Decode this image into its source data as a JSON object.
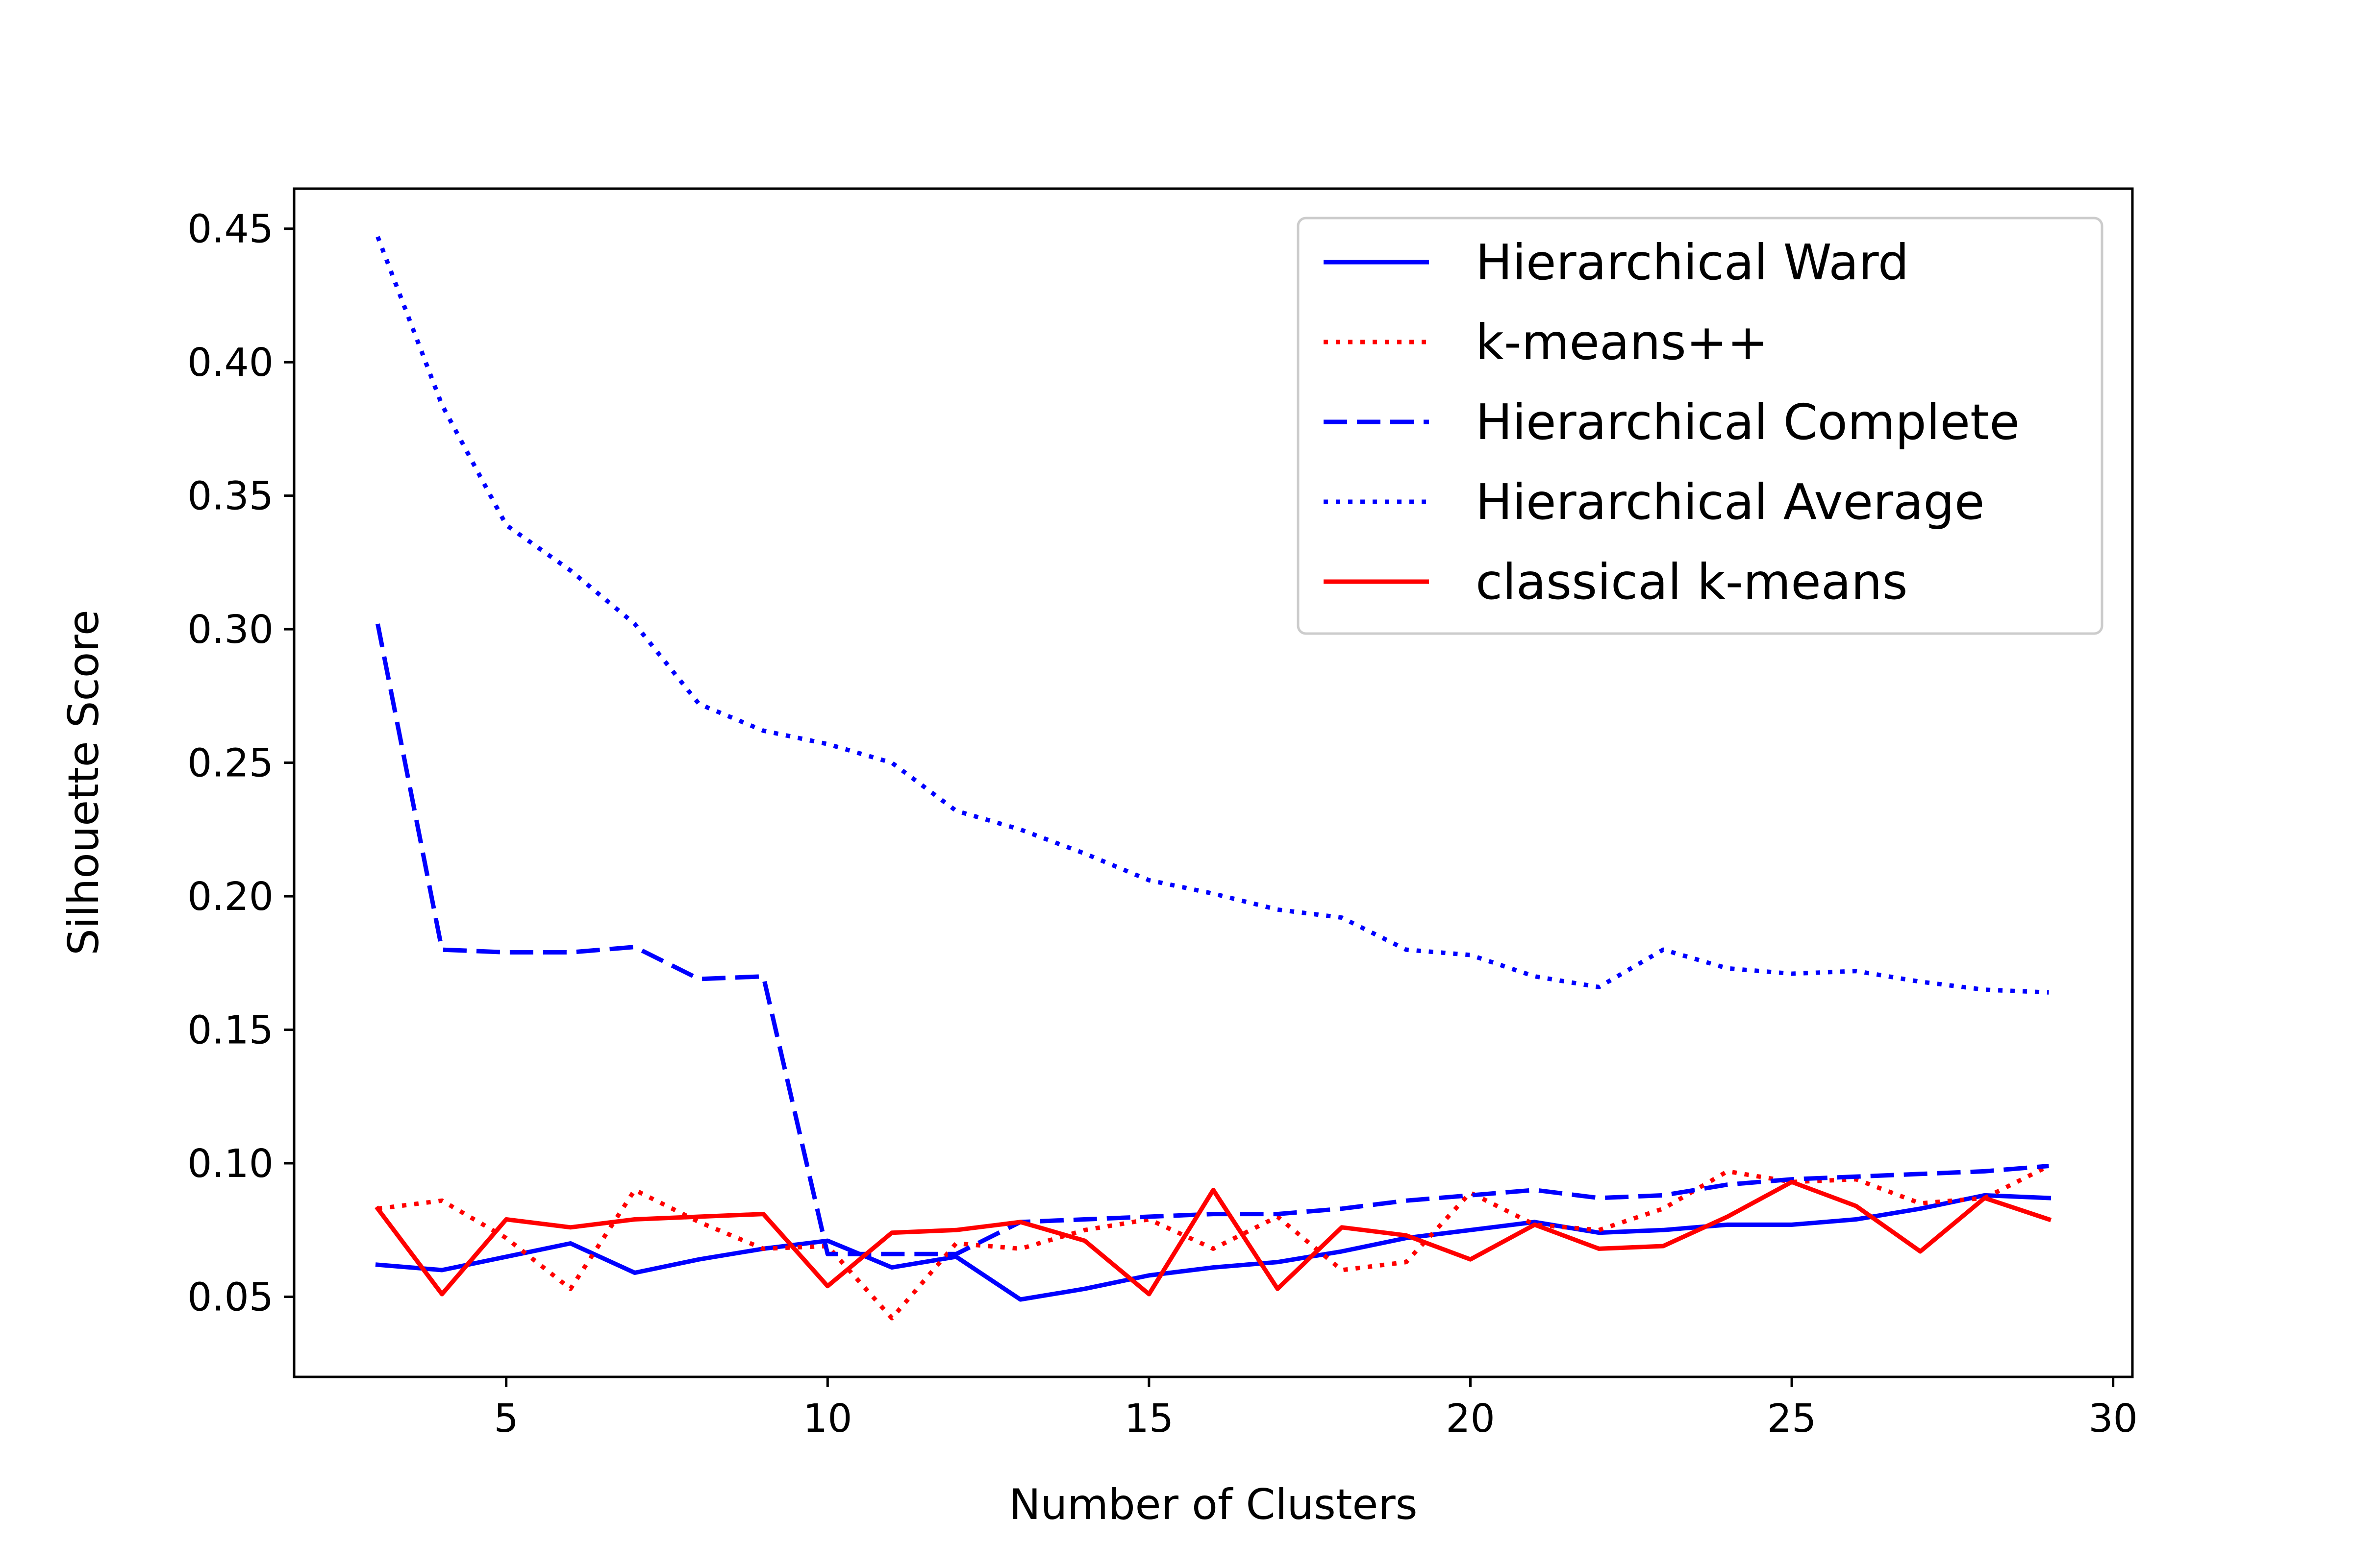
{
  "chart_data": {
    "type": "line",
    "title": "",
    "xlabel": "Number of Clusters",
    "ylabel": "Silhouette Score",
    "xlim": [
      1.7,
      30.3
    ],
    "ylim": [
      0.02,
      0.465
    ],
    "xticks": [
      5,
      10,
      15,
      20,
      25,
      30
    ],
    "yticks": [
      0.05,
      0.1,
      0.15,
      0.2,
      0.25,
      0.3,
      0.35,
      0.4,
      0.45
    ],
    "grid": false,
    "legend_position": "top-right",
    "x": [
      3,
      4,
      5,
      6,
      7,
      8,
      9,
      10,
      11,
      12,
      13,
      14,
      15,
      16,
      17,
      18,
      19,
      20,
      21,
      22,
      23,
      24,
      25,
      26,
      27,
      28,
      29
    ],
    "series": [
      {
        "name": "Hierarchical Ward",
        "color": "#0000ff",
        "style": "solid",
        "values": [
          0.062,
          0.06,
          0.065,
          0.07,
          0.059,
          0.064,
          0.068,
          0.071,
          0.061,
          0.065,
          0.049,
          0.053,
          0.058,
          0.061,
          0.063,
          0.067,
          0.072,
          0.075,
          0.078,
          0.074,
          0.075,
          0.077,
          0.077,
          0.079,
          0.083,
          0.088,
          0.087
        ]
      },
      {
        "name": "k-means++",
        "color": "#ff0000",
        "style": "dotted",
        "values": [
          0.083,
          0.086,
          0.072,
          0.053,
          0.09,
          0.078,
          0.068,
          0.069,
          0.042,
          0.07,
          0.068,
          0.075,
          0.079,
          0.068,
          0.08,
          0.06,
          0.063,
          0.089,
          0.077,
          0.075,
          0.083,
          0.097,
          0.093,
          0.094,
          0.085,
          0.087,
          0.099
        ]
      },
      {
        "name": "Hierarchical Complete",
        "color": "#0000ff",
        "style": "dashed",
        "values": [
          0.302,
          0.18,
          0.179,
          0.179,
          0.181,
          0.169,
          0.17,
          0.066,
          0.066,
          0.066,
          0.078,
          0.079,
          0.08,
          0.081,
          0.081,
          0.083,
          0.086,
          0.088,
          0.09,
          0.087,
          0.088,
          0.092,
          0.094,
          0.095,
          0.096,
          0.097,
          0.099
        ]
      },
      {
        "name": "Hierarchical Average",
        "color": "#0000ff",
        "style": "dotted",
        "values": [
          0.447,
          0.384,
          0.339,
          0.322,
          0.302,
          0.272,
          0.262,
          0.257,
          0.25,
          0.232,
          0.225,
          0.216,
          0.206,
          0.201,
          0.195,
          0.192,
          0.18,
          0.178,
          0.17,
          0.166,
          0.18,
          0.173,
          0.171,
          0.172,
          0.168,
          0.165,
          0.164
        ]
      },
      {
        "name": "classical k-means",
        "color": "#ff0000",
        "style": "solid",
        "values": [
          0.083,
          0.051,
          0.079,
          0.076,
          0.079,
          0.08,
          0.081,
          0.054,
          0.074,
          0.075,
          0.078,
          0.071,
          0.051,
          0.09,
          0.053,
          0.076,
          0.073,
          0.064,
          0.077,
          0.068,
          0.069,
          0.08,
          0.093,
          0.084,
          0.067,
          0.087,
          0.079
        ]
      }
    ]
  }
}
